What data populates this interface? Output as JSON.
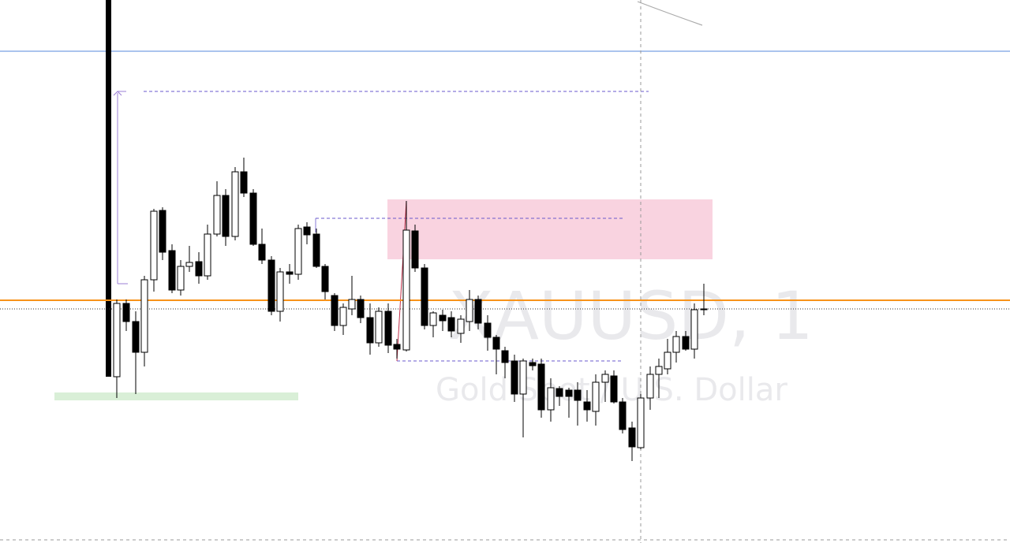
{
  "watermark": {
    "symbol": "XAUUSD, 1",
    "description": "Gold Spot / U.S. Dollar"
  }
}
